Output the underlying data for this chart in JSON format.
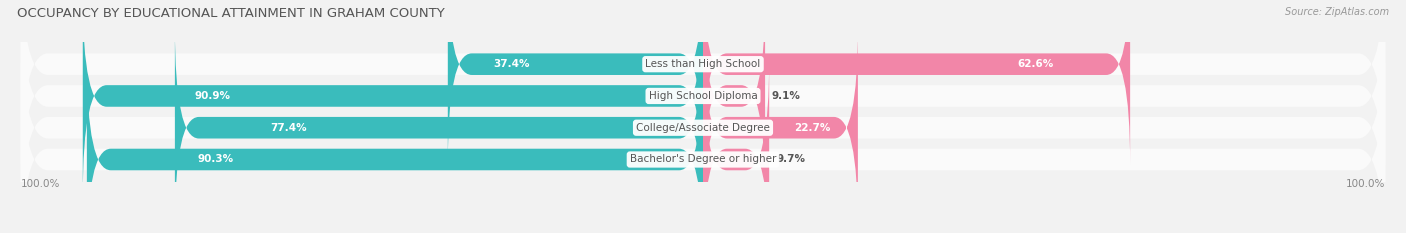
{
  "title": "OCCUPANCY BY EDUCATIONAL ATTAINMENT IN GRAHAM COUNTY",
  "source": "Source: ZipAtlas.com",
  "categories": [
    "Less than High School",
    "High School Diploma",
    "College/Associate Degree",
    "Bachelor's Degree or higher"
  ],
  "owner_values": [
    37.4,
    90.9,
    77.4,
    90.3
  ],
  "renter_values": [
    62.6,
    9.1,
    22.7,
    9.7
  ],
  "owner_color": "#3abcbc",
  "renter_color": "#f286a8",
  "bg_color": "#f2f2f2",
  "bar_bg_color": "#e8e8e8",
  "row_bg_color": "#fafafa",
  "title_fontsize": 9.5,
  "source_fontsize": 7,
  "label_fontsize": 7.5,
  "value_fontsize": 7.5,
  "legend_fontsize": 8,
  "axis_label_fontsize": 7.5
}
